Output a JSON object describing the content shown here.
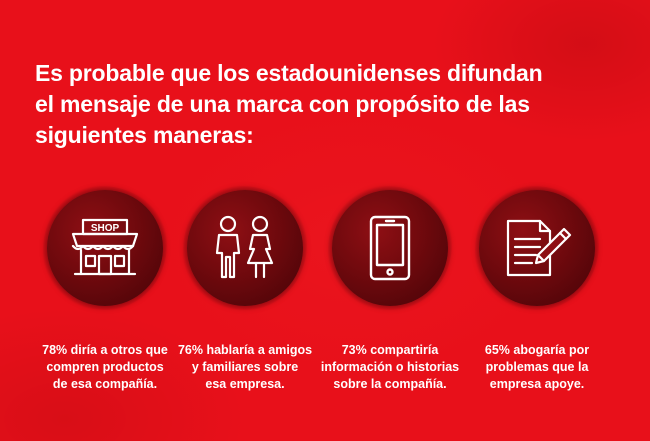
{
  "headline": {
    "lines": [
      "Es probable que los estadounidenses difundan",
      "el mensaje de una marca con propósito de las",
      "siguientes maneras:"
    ]
  },
  "items": [
    {
      "icon": "shop-icon",
      "icon_text": "SHOP",
      "caption_lines": [
        "78% diría a otros que",
        "compren productos",
        "de esa compañía."
      ]
    },
    {
      "icon": "people-icon",
      "caption_lines": [
        "76% hablaría a amigos",
        "y familiares sobre",
        "esa empresa."
      ]
    },
    {
      "icon": "smartphone-icon",
      "caption_lines": [
        "73% compartiría",
        "información o historias",
        "sobre la compañía."
      ]
    },
    {
      "icon": "document-pencil-icon",
      "caption_lines": [
        "65% abogaría por",
        "problemas que la",
        "empresa apoye."
      ]
    }
  ],
  "colors": {
    "background": "#e8101a",
    "badge": "#6f090d",
    "text": "#ffffff"
  }
}
